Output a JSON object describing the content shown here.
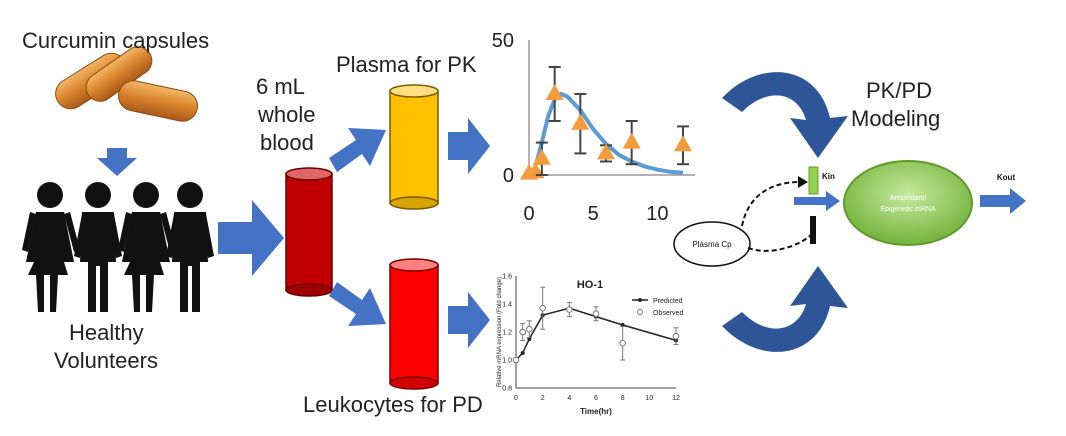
{
  "labels": {
    "capsules": "Curcumin capsules",
    "volunteers_line1": "Healthy",
    "volunteers_line2": "Volunteers",
    "blood_line1": "6 mL",
    "blood_line2": "whole",
    "blood_line3": "blood",
    "plasma": "Plasma for PK",
    "leukocytes": "Leukocytes for PD",
    "pkpd_line1": "PK/PD",
    "pkpd_line2": "Modeling"
  },
  "model": {
    "plasma_cp": "Plasma Cp",
    "kin": "Kin",
    "kout": "Kout",
    "response_line1": "Antioxidant/",
    "response_line2": "Epigenetic mRNA"
  },
  "colors": {
    "arrow_blue": "#4472C4",
    "dark_arrow_blue": "#2E5597",
    "plasma_tube": "#FFC000",
    "whole_blood_tube": "#C00000",
    "leukocyte_tube": "#FF0000",
    "observed_marker": "#F39C3C",
    "pk_fit_line": "#5B9BD5",
    "response_green": "#92D050",
    "capsule_orange": "#D9822B"
  },
  "chart_data": [
    {
      "type": "scatter",
      "title": "",
      "xlim": [
        0,
        12
      ],
      "ylim": [
        0,
        50
      ],
      "x_ticks": [
        "0",
        "5",
        "10"
      ],
      "y_ticks": [
        "0",
        "50"
      ],
      "series": [
        {
          "kind": "observed",
          "x": [
            0,
            0.5,
            1,
            2,
            4,
            6,
            8,
            12
          ],
          "y": [
            0.5,
            1,
            6,
            30,
            19,
            8,
            12,
            11
          ],
          "err": [
            0,
            0,
            6,
            10,
            11,
            3,
            8,
            7
          ]
        },
        {
          "kind": "fitted",
          "x": [
            0,
            0.5,
            1,
            1.5,
            2,
            2.5,
            3,
            4,
            5,
            6,
            7,
            8,
            9,
            10,
            11,
            12
          ],
          "y": [
            0,
            3,
            12,
            22,
            28,
            30,
            29,
            24,
            17,
            11.5,
            7.5,
            5,
            3.2,
            2,
            1.2,
            0.8
          ]
        }
      ]
    },
    {
      "type": "line",
      "title": "HO-1",
      "xlabel": "Time(hr)",
      "ylabel": "Relative mRNA expression (Fold change)",
      "xlim": [
        0,
        12
      ],
      "ylim": [
        0.8,
        1.6
      ],
      "x_ticks": [
        "0",
        "2",
        "4",
        "6",
        "8",
        "10",
        "12"
      ],
      "y_ticks": [
        "0.8",
        "1.0",
        "1.2",
        "1.4",
        "1.6"
      ],
      "legend": [
        "Predicted",
        "Observed"
      ],
      "series": [
        {
          "name": "Predicted",
          "x": [
            0,
            0.5,
            1,
            2,
            4,
            6,
            8,
            12
          ],
          "y": [
            1.0,
            1.05,
            1.15,
            1.32,
            1.37,
            1.31,
            1.25,
            1.14
          ]
        },
        {
          "name": "Observed",
          "x": [
            0,
            0.5,
            1,
            2,
            4,
            6,
            8,
            12
          ],
          "y": [
            1.0,
            1.2,
            1.22,
            1.37,
            1.36,
            1.33,
            1.12,
            1.17
          ],
          "err": [
            0,
            0.06,
            0.06,
            0.15,
            0.05,
            0.05,
            0.12,
            0.06
          ]
        }
      ]
    }
  ]
}
